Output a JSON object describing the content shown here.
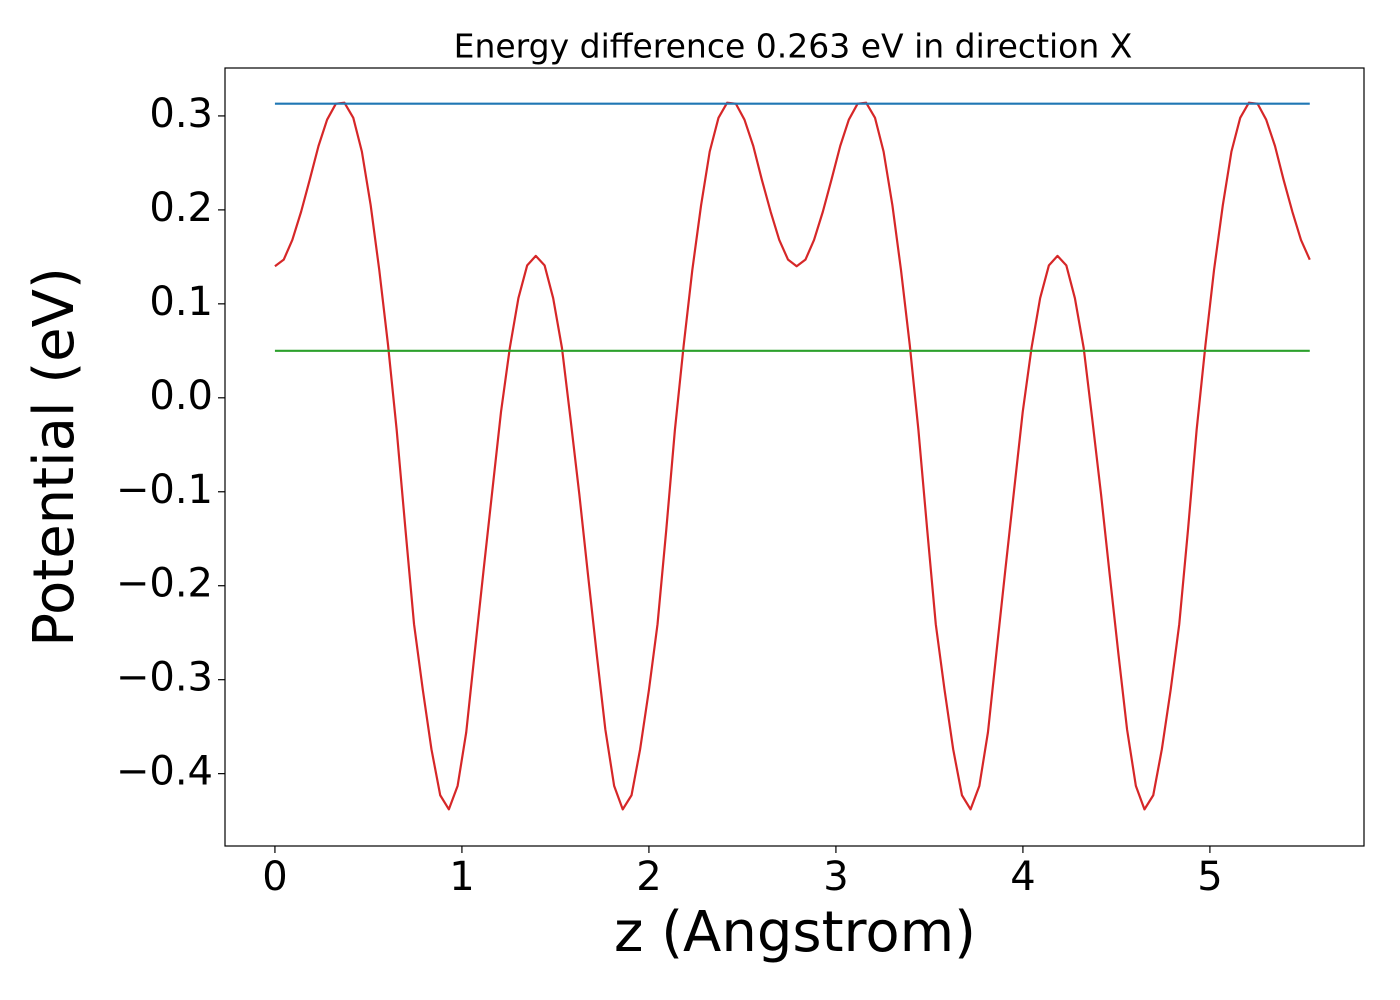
{
  "chart_data": {
    "type": "line",
    "title": "Energy difference 0.263 eV in direction X",
    "xlabel": "z (Angstrom)",
    "ylabel": "Potential (eV)",
    "xlim": [
      -0.267,
      5.824
    ],
    "ylim": [
      -0.477,
      0.351
    ],
    "xticks": [
      0,
      1,
      2,
      3,
      4,
      5
    ],
    "yticks": [
      {
        "value": -0.4,
        "label": "−0.4"
      },
      {
        "value": -0.3,
        "label": "−0.3"
      },
      {
        "value": -0.2,
        "label": "−0.2"
      },
      {
        "value": -0.1,
        "label": "−0.1"
      },
      {
        "value": 0.0,
        "label": "0.0"
      },
      0.1,
      0.2,
      0.3
    ],
    "grid": false,
    "series": [
      {
        "color": "#d62728",
        "x": [
          0,
          0.047,
          0.093,
          0.14,
          0.186,
          0.233,
          0.279,
          0.326,
          0.372,
          0.419,
          0.465,
          0.512,
          0.558,
          0.605,
          0.651,
          0.698,
          0.744,
          0.791,
          0.837,
          0.884,
          0.93,
          0.977,
          1.023,
          1.07,
          1.116,
          1.163,
          1.209,
          1.256,
          1.302,
          1.349,
          1.395,
          1.442,
          1.488,
          1.535,
          1.581,
          1.628,
          1.674,
          1.721,
          1.767,
          1.814,
          1.86,
          1.907,
          1.953,
          2.0,
          2.046,
          2.093,
          2.139,
          2.186,
          2.232,
          2.279,
          2.325,
          2.372,
          2.418,
          2.465,
          2.511,
          2.558,
          2.604,
          2.651,
          2.697,
          2.744,
          2.79,
          2.837,
          2.883,
          2.93,
          2.976,
          3.023,
          3.069,
          3.116,
          3.162,
          3.209,
          3.255,
          3.302,
          3.348,
          3.395,
          3.441,
          3.488,
          3.534,
          3.581,
          3.627,
          3.674,
          3.72,
          3.767,
          3.813,
          3.86,
          3.906,
          3.953,
          3.999,
          4.046,
          4.092,
          4.139,
          4.185,
          4.232,
          4.278,
          4.325,
          4.371,
          4.418,
          4.464,
          4.511,
          4.557,
          4.604,
          4.65,
          4.697,
          4.743,
          4.79,
          4.836,
          4.883,
          4.929,
          4.976,
          5.022,
          5.069,
          5.115,
          5.162,
          5.208,
          5.255,
          5.301,
          5.348,
          5.394,
          5.441,
          5.487,
          5.534
        ],
        "values": [
          0.14,
          0.147,
          0.168,
          0.198,
          0.232,
          0.268,
          0.296,
          0.313,
          0.314,
          0.298,
          0.262,
          0.205,
          0.136,
          0.056,
          -0.034,
          -0.14,
          -0.241,
          -0.311,
          -0.374,
          -0.423,
          -0.438,
          -0.413,
          -0.356,
          -0.268,
          -0.183,
          -0.098,
          -0.015,
          0.053,
          0.106,
          0.141,
          0.151,
          0.141,
          0.106,
          0.053,
          -0.023,
          -0.103,
          -0.188,
          -0.273,
          -0.353,
          -0.413,
          -0.438,
          -0.423,
          -0.374,
          -0.311,
          -0.241,
          -0.14,
          -0.034,
          0.056,
          0.136,
          0.205,
          0.262,
          0.298,
          0.314,
          0.313,
          0.296,
          0.268,
          0.232,
          0.198,
          0.168,
          0.147,
          0.14,
          0.147,
          0.168,
          0.198,
          0.232,
          0.268,
          0.296,
          0.313,
          0.314,
          0.298,
          0.262,
          0.205,
          0.136,
          0.056,
          -0.034,
          -0.14,
          -0.241,
          -0.311,
          -0.374,
          -0.423,
          -0.438,
          -0.413,
          -0.356,
          -0.268,
          -0.183,
          -0.098,
          -0.015,
          0.053,
          0.106,
          0.141,
          0.151,
          0.141,
          0.106,
          0.053,
          -0.023,
          -0.103,
          -0.188,
          -0.273,
          -0.353,
          -0.413,
          -0.438,
          -0.423,
          -0.374,
          -0.311,
          -0.241,
          -0.14,
          -0.034,
          0.056,
          0.136,
          0.205,
          0.262,
          0.298,
          0.314,
          0.313,
          0.296,
          0.268,
          0.232,
          0.198,
          0.168,
          0.147
        ]
      },
      {
        "color": "#1f77b4",
        "x": [
          0,
          5.534
        ],
        "values": [
          0.313,
          0.313
        ]
      },
      {
        "color": "#2ca02c",
        "x": [
          0,
          5.534
        ],
        "values": [
          0.05,
          0.05
        ]
      }
    ]
  }
}
